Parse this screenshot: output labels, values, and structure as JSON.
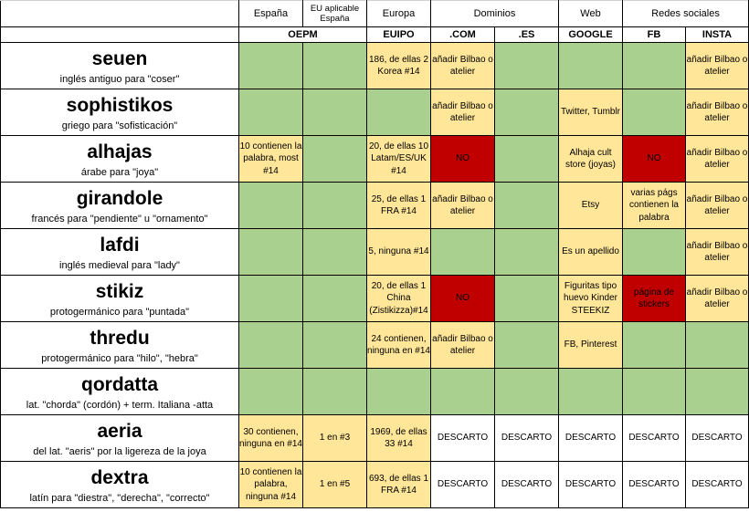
{
  "headers": {
    "groups": [
      "España",
      "EU aplicable España",
      "Europa",
      "Dominios",
      "Web",
      "Redes sociales"
    ],
    "subs": [
      "OEPM",
      "EUIPO",
      ".COM",
      ".ES",
      "GOOGLE",
      "FB",
      "INSTA"
    ]
  },
  "rows": [
    {
      "word": "seuen",
      "desc": "inglés antiguo para \"coser\"",
      "cells": [
        {
          "c": "g",
          "t": ""
        },
        {
          "c": "g",
          "t": ""
        },
        {
          "c": "y",
          "t": "186, de ellas 2 Korea #14"
        },
        {
          "c": "y",
          "t": "añadir Bilbao o atelier"
        },
        {
          "c": "g",
          "t": ""
        },
        {
          "c": "g",
          "t": ""
        },
        {
          "c": "g",
          "t": ""
        },
        {
          "c": "y",
          "t": "añadir Bilbao o atelier"
        }
      ]
    },
    {
      "word": "sophistikos",
      "desc": "griego para \"sofisticación\"",
      "cells": [
        {
          "c": "g",
          "t": ""
        },
        {
          "c": "g",
          "t": ""
        },
        {
          "c": "g",
          "t": ""
        },
        {
          "c": "y",
          "t": "añadir Bilbao o atelier"
        },
        {
          "c": "g",
          "t": ""
        },
        {
          "c": "y",
          "t": "Twitter, Tumblr"
        },
        {
          "c": "g",
          "t": ""
        },
        {
          "c": "y",
          "t": "añadir Bilbao o atelier"
        }
      ]
    },
    {
      "word": "alhajas",
      "desc": "árabe para \"joya\"",
      "cells": [
        {
          "c": "y",
          "t": "10 contienen la palabra, most #14"
        },
        {
          "c": "g",
          "t": ""
        },
        {
          "c": "y",
          "t": "20, de ellas 10 Latam/ES/UK #14"
        },
        {
          "c": "rd",
          "t": "NO"
        },
        {
          "c": "g",
          "t": ""
        },
        {
          "c": "y",
          "t": "Alhaja cult store (joyas)"
        },
        {
          "c": "rd",
          "t": "NO"
        },
        {
          "c": "y",
          "t": "añadir Bilbao o atelier"
        }
      ]
    },
    {
      "word": "girandole",
      "desc": "francés para \"pendiente\" u \"ornamento\"",
      "cells": [
        {
          "c": "g",
          "t": ""
        },
        {
          "c": "g",
          "t": ""
        },
        {
          "c": "y",
          "t": "25, de ellas 1 FRA #14"
        },
        {
          "c": "y",
          "t": "añadir Bilbao o atelier"
        },
        {
          "c": "g",
          "t": ""
        },
        {
          "c": "y",
          "t": "Etsy"
        },
        {
          "c": "y",
          "t": "varias págs contienen la palabra"
        },
        {
          "c": "y",
          "t": "añadir Bilbao o atelier"
        }
      ]
    },
    {
      "word": "lafdi",
      "desc": "inglés medieval para \"lady\"",
      "cells": [
        {
          "c": "g",
          "t": ""
        },
        {
          "c": "g",
          "t": ""
        },
        {
          "c": "y",
          "t": "5, ninguna #14"
        },
        {
          "c": "g",
          "t": ""
        },
        {
          "c": "g",
          "t": ""
        },
        {
          "c": "y",
          "t": "Es un apellido"
        },
        {
          "c": "g",
          "t": ""
        },
        {
          "c": "y",
          "t": "añadir Bilbao o atelier"
        }
      ]
    },
    {
      "word": "stikiz",
      "desc": "protogermánico para \"puntada\"",
      "cells": [
        {
          "c": "g",
          "t": ""
        },
        {
          "c": "g",
          "t": ""
        },
        {
          "c": "y",
          "t": "20, de ellas 1 China (Zistikizza)#14"
        },
        {
          "c": "rd",
          "t": "NO"
        },
        {
          "c": "g",
          "t": ""
        },
        {
          "c": "y",
          "t": "Figuritas tipo huevo Kinder STEEKIZ"
        },
        {
          "c": "rd",
          "t": "página de stickers"
        },
        {
          "c": "y",
          "t": "añadir Bilbao o atelier"
        }
      ]
    },
    {
      "word": "thredu",
      "desc": "protogermánico para \"hilo\", \"hebra\"",
      "cells": [
        {
          "c": "g",
          "t": ""
        },
        {
          "c": "g",
          "t": ""
        },
        {
          "c": "y",
          "t": "24 contienen, ninguna en #14"
        },
        {
          "c": "y",
          "t": "añadir Bilbao o atelier"
        },
        {
          "c": "g",
          "t": ""
        },
        {
          "c": "y",
          "t": "FB, Pinterest"
        },
        {
          "c": "g",
          "t": ""
        },
        {
          "c": "g",
          "t": ""
        }
      ]
    },
    {
      "word": "qordatta",
      "desc": "lat. \"chorda\" (cordón) + term. Italiana -atta",
      "cells": [
        {
          "c": "g",
          "t": ""
        },
        {
          "c": "g",
          "t": ""
        },
        {
          "c": "g",
          "t": ""
        },
        {
          "c": "g",
          "t": ""
        },
        {
          "c": "g",
          "t": ""
        },
        {
          "c": "g",
          "t": ""
        },
        {
          "c": "g",
          "t": ""
        },
        {
          "c": "g",
          "t": ""
        }
      ]
    },
    {
      "word": "aeria",
      "desc": "del lat. \"aeris\"  por la ligereza de la joya",
      "cells": [
        {
          "c": "y",
          "t": "30 contienen, ninguna en #14"
        },
        {
          "c": "y",
          "t": "1 en #3"
        },
        {
          "c": "y",
          "t": "1969, de ellas 33 #14"
        },
        {
          "c": "wh",
          "t": "DESCARTO"
        },
        {
          "c": "wh",
          "t": "DESCARTO"
        },
        {
          "c": "wh",
          "t": "DESCARTO"
        },
        {
          "c": "wh",
          "t": "DESCARTO"
        },
        {
          "c": "wh",
          "t": "DESCARTO"
        }
      ]
    },
    {
      "word": "dextra",
      "desc": "latín para \"diestra\", \"derecha\", \"correcto\"",
      "cells": [
        {
          "c": "y",
          "t": "10 contienen la palabra, ninguna #14"
        },
        {
          "c": "y",
          "t": "1 en #5"
        },
        {
          "c": "y",
          "t": "693, de ellas 1 FRA #14"
        },
        {
          "c": "wh",
          "t": "DESCARTO"
        },
        {
          "c": "wh",
          "t": "DESCARTO"
        },
        {
          "c": "wh",
          "t": "DESCARTO"
        },
        {
          "c": "wh",
          "t": "DESCARTO"
        },
        {
          "c": "wh",
          "t": "DESCARTO"
        }
      ]
    }
  ]
}
